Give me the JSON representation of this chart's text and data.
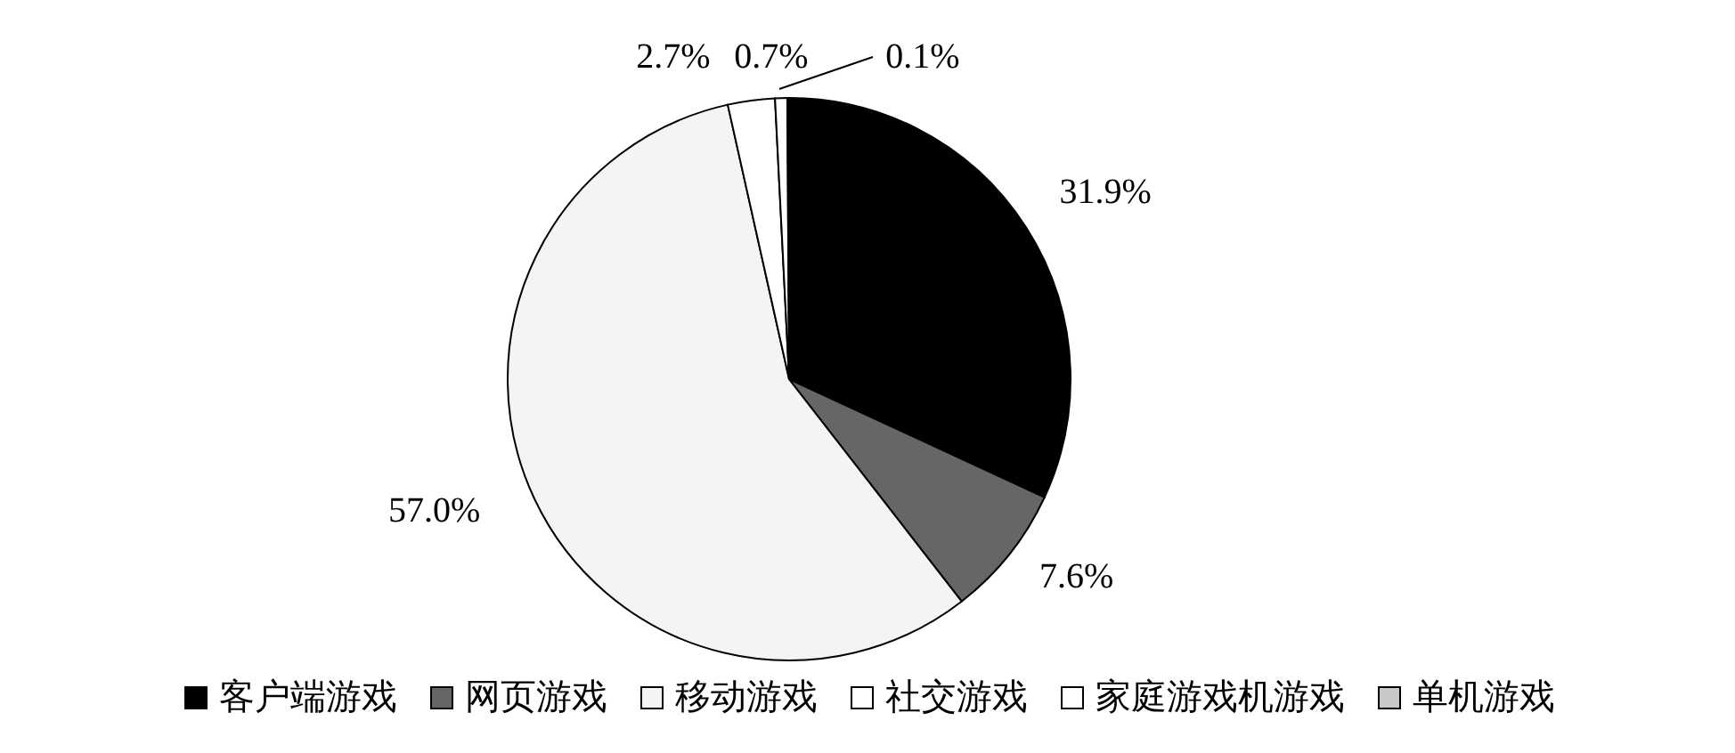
{
  "chart_data": {
    "type": "pie",
    "categories": [
      "客户端游戏",
      "网页游戏",
      "移动游戏",
      "社交游戏",
      "家庭游戏机游戏",
      "单机游戏"
    ],
    "values": [
      31.9,
      7.6,
      57.0,
      2.7,
      0.7,
      0.1
    ],
    "colors": [
      "#000000",
      "#666666",
      "#f4f4f4",
      "#ffffff",
      "#ffffff",
      "#c8c8c8"
    ],
    "value_labels": [
      "31.9%",
      "7.6%",
      "57.0%",
      "2.7%",
      "0.7%",
      "0.1%"
    ],
    "legend": "bottom"
  }
}
